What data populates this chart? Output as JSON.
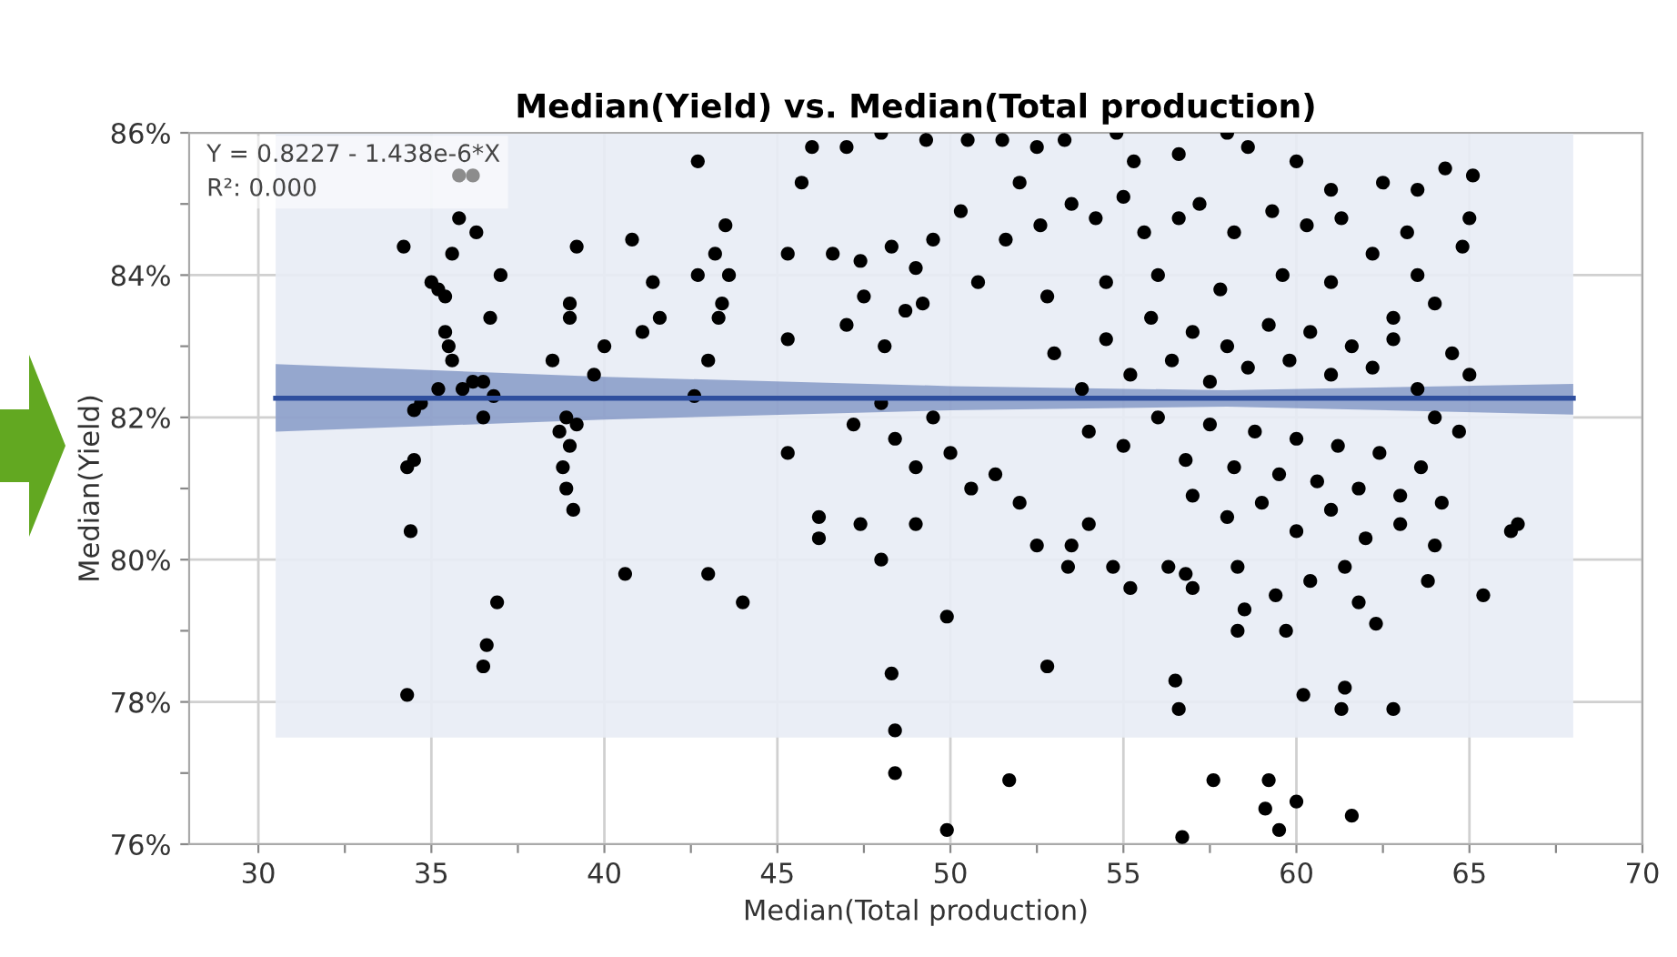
{
  "chart_data": {
    "type": "scatter",
    "title": "Median(Yield) vs. Median(Total production)",
    "xlabel": "Median(Total production)",
    "ylabel": "Median(Yield)",
    "annotations": [
      "Y = 0.8227 - 1.438e-6*X",
      "R²: 0.000"
    ],
    "xlim": [
      28,
      70
    ],
    "ylim": [
      76,
      86
    ],
    "xticks": [
      30,
      {
        "value": 32.5,
        "label": null
      },
      35,
      {
        "value": 37.5,
        "label": null
      },
      40,
      {
        "value": 42.5,
        "label": null
      },
      45,
      {
        "value": 47.5,
        "label": null
      },
      50,
      {
        "value": 52.5,
        "label": null
      },
      55,
      {
        "value": 57.5,
        "label": null
      },
      60,
      {
        "value": 62.5,
        "label": null
      },
      65,
      {
        "value": 67.5,
        "label": null
      },
      70
    ],
    "yticks": [
      {
        "value": 76,
        "label": "76%"
      },
      {
        "value": 77,
        "label": null
      },
      {
        "value": 78,
        "label": "78%"
      },
      {
        "value": 79,
        "label": null
      },
      {
        "value": 80,
        "label": "80%"
      },
      {
        "value": 81,
        "label": null
      },
      {
        "value": 82,
        "label": "82%"
      },
      {
        "value": 83,
        "label": null
      },
      {
        "value": 84,
        "label": "84%"
      },
      {
        "value": 85,
        "label": null
      },
      {
        "value": 86,
        "label": "86%"
      }
    ],
    "grid": true,
    "marker": "circle",
    "series": [
      {
        "type": "line",
        "color": "#e8ecf5",
        "x": [
          30.5,
          68
        ],
        "values": [
          null,
          null
        ],
        "lower": [
          77.5,
          77.5
        ],
        "upper": [
          86,
          86
        ]
      },
      {
        "type": "line",
        "marker": "none",
        "color": "#2f4f9e",
        "x": [
          30.5,
          40,
          50,
          58,
          68
        ],
        "values": [
          82.27,
          82.27,
          82.27,
          82.27,
          82.27
        ],
        "lower": [
          81.8,
          81.97,
          82.1,
          82.15,
          82.04
        ],
        "upper": [
          82.75,
          82.57,
          82.44,
          82.38,
          82.47
        ]
      },
      {
        "color": "#000000",
        "x": [
          34.2,
          34.5,
          34.7,
          35.0,
          35.2,
          35.4,
          35.4,
          35.5,
          35.6,
          35.2,
          35.6,
          35.9,
          36.2,
          36.5,
          36.8,
          36.5,
          37.0,
          36.7,
          34.3,
          34.5,
          34.4,
          36.9,
          36.6,
          36.5,
          34.3,
          35.8,
          36.2,
          35.8,
          36.3,
          38.7,
          38.9,
          39.0,
          38.8,
          39.2,
          38.9,
          39.1,
          38.5,
          39.0,
          39.0,
          39.2,
          39.7,
          40.0,
          40.6,
          40.8,
          41.4,
          41.6,
          41.1,
          42.7,
          42.7,
          43.0,
          43.2,
          43.5,
          43.6,
          43.4,
          43.3,
          42.6,
          43.0,
          44.0,
          45.3,
          45.3,
          45.3,
          45.7,
          46.0,
          46.2,
          46.2,
          47.0,
          48.0,
          49.3,
          50.5,
          51.5,
          52.5,
          53.3,
          54.8,
          55.3,
          56.6,
          58.0,
          58.6,
          60.0,
          61.0,
          62.5,
          63.5,
          64.3,
          65.1,
          65.0,
          64.8,
          46.6,
          47.4,
          48.3,
          49.0,
          48.7,
          47.5,
          48.1,
          47.0,
          49.5,
          49.2,
          50.3,
          50.8,
          51.6,
          52.0,
          52.6,
          53.5,
          54.2,
          55.0,
          55.6,
          56.6,
          57.2,
          58.2,
          59.3,
          60.3,
          61.3,
          62.2,
          63.2,
          63.5,
          64.0,
          52.8,
          54.5,
          56.0,
          57.8,
          59.6,
          61.0,
          62.8,
          64.5,
          65.0,
          53.0,
          53.8,
          54.5,
          55.2,
          55.8,
          56.4,
          57.0,
          57.5,
          58.0,
          58.6,
          59.2,
          59.8,
          60.4,
          61.0,
          61.6,
          62.2,
          62.8,
          63.5,
          64.0,
          64.7,
          54.0,
          55.0,
          56.0,
          56.8,
          57.5,
          58.2,
          58.8,
          59.5,
          60.0,
          60.6,
          61.2,
          61.8,
          62.4,
          63.0,
          63.6,
          64.2,
          57.0,
          58.0,
          59.0,
          60.0,
          61.0,
          62.0,
          63.0,
          47.2,
          48.0,
          48.4,
          49.0,
          49.5,
          50.0,
          50.6,
          51.3,
          52.0,
          52.5,
          53.5,
          53.4,
          54.0,
          54.7,
          55.2,
          56.3,
          56.8,
          57.0,
          58.3,
          58.5,
          58.3,
          59.4,
          59.7,
          60.4,
          61.4,
          61.8,
          62.3,
          63.8,
          64.0,
          65.4,
          66.4,
          66.2,
          47.4,
          48.0,
          49.0,
          49.9,
          48.3,
          52.8,
          56.5,
          56.6,
          60.2,
          61.4,
          61.3,
          62.8,
          48.4,
          48.4,
          51.7,
          57.6,
          59.2,
          59.1,
          60.0,
          59.5,
          61.6,
          49.9,
          56.7
        ],
        "values": [
          84.4,
          82.1,
          82.2,
          83.9,
          83.8,
          83.7,
          83.2,
          83.0,
          84.3,
          82.4,
          82.8,
          82.4,
          82.5,
          82.5,
          82.3,
          82.0,
          84.0,
          83.4,
          81.3,
          81.4,
          80.4,
          79.4,
          78.8,
          78.5,
          78.1,
          85.4,
          85.4,
          84.8,
          84.6,
          81.8,
          82.0,
          81.6,
          81.3,
          81.9,
          81.0,
          80.7,
          82.8,
          83.4,
          83.6,
          84.4,
          82.6,
          83.0,
          79.8,
          84.5,
          83.9,
          83.4,
          83.2,
          85.6,
          84.0,
          82.8,
          84.3,
          84.7,
          84.0,
          83.6,
          83.4,
          82.3,
          79.8,
          79.4,
          84.3,
          83.1,
          81.5,
          85.3,
          85.8,
          80.6,
          80.3,
          85.8,
          86.0,
          85.9,
          85.9,
          85.9,
          85.8,
          85.9,
          86.0,
          85.6,
          85.7,
          86.0,
          85.8,
          85.6,
          85.2,
          85.3,
          85.2,
          85.5,
          85.4,
          84.8,
          84.4,
          84.3,
          84.2,
          84.4,
          84.1,
          83.5,
          83.7,
          83.0,
          83.3,
          84.5,
          83.6,
          84.9,
          83.9,
          84.5,
          85.3,
          84.7,
          85.0,
          84.8,
          85.1,
          84.6,
          84.8,
          85.0,
          84.6,
          84.9,
          84.7,
          84.8,
          84.3,
          84.6,
          84.0,
          83.6,
          83.7,
          83.9,
          84.0,
          83.8,
          84.0,
          83.9,
          83.4,
          82.9,
          82.6,
          82.9,
          82.4,
          83.1,
          82.6,
          83.4,
          82.8,
          83.2,
          82.5,
          83.0,
          82.7,
          83.3,
          82.8,
          83.2,
          82.6,
          83.0,
          82.7,
          83.1,
          82.4,
          82.0,
          81.8,
          81.8,
          81.6,
          82.0,
          81.4,
          81.9,
          81.3,
          81.8,
          81.2,
          81.7,
          81.1,
          81.6,
          81.0,
          81.5,
          80.9,
          81.3,
          80.8,
          80.9,
          80.6,
          80.8,
          80.4,
          80.7,
          80.3,
          80.5,
          81.9,
          82.2,
          81.7,
          81.3,
          82.0,
          81.5,
          81.0,
          81.2,
          80.8,
          80.2,
          80.2,
          79.9,
          80.5,
          79.9,
          79.6,
          79.9,
          79.8,
          79.6,
          79.9,
          79.3,
          79.0,
          79.5,
          79.0,
          79.7,
          79.9,
          79.4,
          79.1,
          79.7,
          80.2,
          79.5,
          80.5,
          80.4,
          80.5,
          80.0,
          80.5,
          79.2,
          78.4,
          78.5,
          78.3,
          77.9,
          78.1,
          78.2,
          77.9,
          77.9,
          77.6,
          77.0,
          76.9,
          76.9,
          76.9,
          76.5,
          76.6,
          76.2,
          76.4,
          76.2,
          76.1
        ]
      }
    ]
  }
}
